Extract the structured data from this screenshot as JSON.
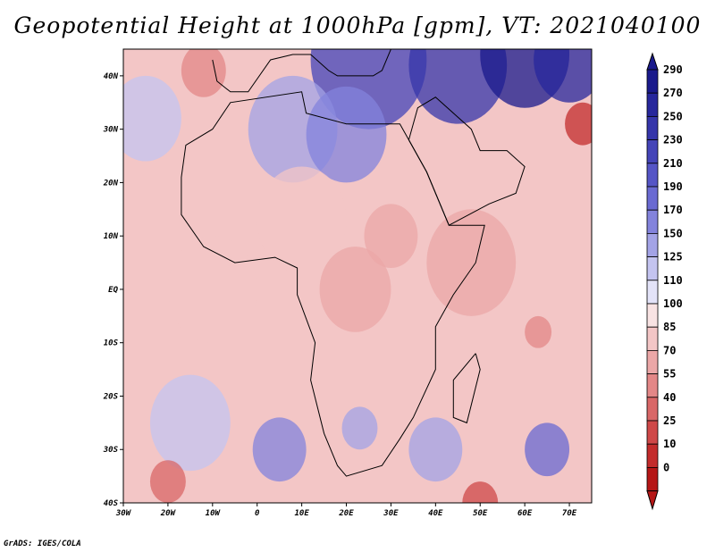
{
  "title": "Geopotential Height at 1000hPa [gpm], VT: 2021040100",
  "credit": "GrADS: IGES/COLA",
  "map": {
    "lon_range": [
      -30,
      75
    ],
    "lat_range": [
      -40,
      45
    ],
    "x_ticks": [
      {
        "lon": -30,
        "label": "30W"
      },
      {
        "lon": -20,
        "label": "20W"
      },
      {
        "lon": -10,
        "label": "10W"
      },
      {
        "lon": 0,
        "label": "0"
      },
      {
        "lon": 10,
        "label": "10E"
      },
      {
        "lon": 20,
        "label": "20E"
      },
      {
        "lon": 30,
        "label": "30E"
      },
      {
        "lon": 40,
        "label": "40E"
      },
      {
        "lon": 50,
        "label": "50E"
      },
      {
        "lon": 60,
        "label": "60E"
      },
      {
        "lon": 70,
        "label": "70E"
      }
    ],
    "y_ticks": [
      {
        "lat": 40,
        "label": "40N"
      },
      {
        "lat": 30,
        "label": "30N"
      },
      {
        "lat": 20,
        "label": "20N"
      },
      {
        "lat": 10,
        "label": "10N"
      },
      {
        "lat": 0,
        "label": "EQ"
      },
      {
        "lat": -10,
        "label": "10S"
      },
      {
        "lat": -20,
        "label": "20S"
      },
      {
        "lat": -30,
        "label": "30S"
      },
      {
        "lat": -40,
        "label": "40S"
      }
    ],
    "features": [
      {
        "lon": 25,
        "lat": 43,
        "value": 240,
        "spread": 13
      },
      {
        "lon": 45,
        "lat": 42,
        "value": 250,
        "spread": 11
      },
      {
        "lon": 60,
        "lat": 44,
        "value": 290,
        "spread": 10
      },
      {
        "lon": 70,
        "lat": 43,
        "value": 280,
        "spread": 8
      },
      {
        "lon": 8,
        "lat": 30,
        "value": 160,
        "spread": 10
      },
      {
        "lon": 20,
        "lat": 29,
        "value": 170,
        "spread": 9
      },
      {
        "lon": -25,
        "lat": 32,
        "value": 135,
        "spread": 8
      },
      {
        "lon": -12,
        "lat": 41,
        "value": 60,
        "spread": 5
      },
      {
        "lon": 73,
        "lat": 31,
        "value": 20,
        "spread": 4
      },
      {
        "lon": 10,
        "lat": 13,
        "value": 85,
        "spread": 10
      },
      {
        "lon": 30,
        "lat": 10,
        "value": 70,
        "spread": 6
      },
      {
        "lon": 22,
        "lat": 0,
        "value": 75,
        "spread": 8
      },
      {
        "lon": 48,
        "lat": 5,
        "value": 80,
        "spread": 10
      },
      {
        "lon": 63,
        "lat": -8,
        "value": 60,
        "spread": 3
      },
      {
        "lon": -10,
        "lat": 0,
        "value": 95,
        "spread": 10
      },
      {
        "lon": -15,
        "lat": -25,
        "value": 135,
        "spread": 9
      },
      {
        "lon": 5,
        "lat": -30,
        "value": 170,
        "spread": 6
      },
      {
        "lon": 40,
        "lat": -30,
        "value": 150,
        "spread": 6
      },
      {
        "lon": 65,
        "lat": -30,
        "value": 190,
        "spread": 5
      },
      {
        "lon": 23,
        "lat": -26,
        "value": 150,
        "spread": 4
      },
      {
        "lon": -20,
        "lat": -36,
        "value": 40,
        "spread": 4
      },
      {
        "lon": 50,
        "lat": -40,
        "value": 30,
        "spread": 4
      }
    ]
  },
  "colorbar": {
    "labels": [
      "290",
      "270",
      "250",
      "230",
      "210",
      "190",
      "170",
      "150",
      "125",
      "110",
      "100",
      "85",
      "70",
      "55",
      "40",
      "25",
      "10",
      "0"
    ],
    "colors": [
      "#1a1a8c",
      "#27279c",
      "#3535aa",
      "#4444b8",
      "#5555c6",
      "#6a6ad2",
      "#8383dc",
      "#a3a3e6",
      "#c4c4f0",
      "#e3e3f8",
      "#f8e3e3",
      "#f3c6c6",
      "#eba7a7",
      "#e38787",
      "#d96767",
      "#cf4848",
      "#c32c2c",
      "#b51616"
    ]
  }
}
